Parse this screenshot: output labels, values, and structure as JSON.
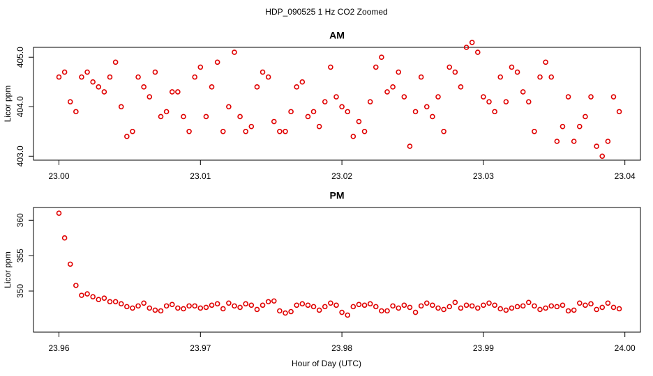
{
  "title": "HDP_090525  1 Hz CO2 Zoomed",
  "xlabel": "Hour of Day (UTC)",
  "chart_data": [
    {
      "type": "scatter",
      "title": "AM",
      "ylabel": "Licor ppm",
      "color": "#e00000",
      "xlim": [
        22.9982,
        23.0411
      ],
      "ylim": [
        402.92,
        405.2
      ],
      "xticks": [
        {
          "value": 23.0,
          "label": "23.00"
        },
        {
          "value": 23.01,
          "label": "23.01"
        },
        {
          "value": 23.02,
          "label": "23.02"
        },
        {
          "value": 23.03,
          "label": "23.03"
        },
        {
          "value": 23.04,
          "label": "23.04"
        }
      ],
      "yticks": [
        {
          "value": 403,
          "label": "403.0"
        },
        {
          "value": 404,
          "label": "404.0"
        },
        {
          "value": 405,
          "label": "405.0"
        }
      ],
      "x": [
        23.0,
        23.0004,
        23.0008,
        23.0012,
        23.0016,
        23.002,
        23.0024,
        23.0028,
        23.0032,
        23.0036,
        23.004,
        23.0044,
        23.0048,
        23.0052,
        23.0056,
        23.006,
        23.0064,
        23.0068,
        23.0072,
        23.0076,
        23.008,
        23.0084,
        23.0088,
        23.0092,
        23.0096,
        23.01,
        23.0104,
        23.0108,
        23.0112,
        23.0116,
        23.012,
        23.0124,
        23.0128,
        23.0132,
        23.0136,
        23.014,
        23.0144,
        23.0148,
        23.0152,
        23.0156,
        23.016,
        23.0164,
        23.0168,
        23.0172,
        23.0176,
        23.018,
        23.0184,
        23.0188,
        23.0192,
        23.0196,
        23.02,
        23.0204,
        23.0208,
        23.0212,
        23.0216,
        23.022,
        23.0224,
        23.0228,
        23.0232,
        23.0236,
        23.024,
        23.0244,
        23.0248,
        23.0252,
        23.0256,
        23.026,
        23.0264,
        23.0268,
        23.0272,
        23.0276,
        23.028,
        23.0284,
        23.0288,
        23.0292,
        23.0296,
        23.03,
        23.0304,
        23.0308,
        23.0312,
        23.0316,
        23.032,
        23.0324,
        23.0328,
        23.0332,
        23.0336,
        23.034,
        23.0344,
        23.0348,
        23.0352,
        23.0356,
        23.036,
        23.0364,
        23.0368,
        23.0372,
        23.0376,
        23.038,
        23.0384,
        23.0388,
        23.0392,
        23.0396
      ],
      "values": [
        404.6,
        404.7,
        404.1,
        403.9,
        404.6,
        404.7,
        404.5,
        404.4,
        404.3,
        404.6,
        404.9,
        404.0,
        403.4,
        403.5,
        404.6,
        404.4,
        404.2,
        404.7,
        403.8,
        403.9,
        404.3,
        404.3,
        403.8,
        403.5,
        404.6,
        404.8,
        403.8,
        404.4,
        404.9,
        403.5,
        404.0,
        405.1,
        403.8,
        403.5,
        403.6,
        404.4,
        404.7,
        404.6,
        403.7,
        403.5,
        403.5,
        403.9,
        404.4,
        404.5,
        403.8,
        403.9,
        403.6,
        404.1,
        404.8,
        404.2,
        404.0,
        403.9,
        403.4,
        403.7,
        403.5,
        404.1,
        404.8,
        405.0,
        404.3,
        404.4,
        404.7,
        404.2,
        403.2,
        403.9,
        404.6,
        404.0,
        403.8,
        404.2,
        403.5,
        404.8,
        404.7,
        404.4,
        405.2,
        405.3,
        405.1,
        404.2,
        404.1,
        403.9,
        404.6,
        404.1,
        404.8,
        404.7,
        404.3,
        404.1,
        403.5,
        404.6,
        404.9,
        404.6,
        403.3,
        403.6,
        404.2,
        403.3,
        403.6,
        403.8,
        404.2,
        403.2,
        403.0,
        403.3,
        404.2,
        403.9
      ]
    },
    {
      "type": "scatter",
      "title": "PM",
      "ylabel": "Licor ppm",
      "color": "#e00000",
      "xlim": [
        23.9582,
        24.0011
      ],
      "ylim": [
        344.2,
        361.8
      ],
      "xticks": [
        {
          "value": 23.96,
          "label": "23.96"
        },
        {
          "value": 23.97,
          "label": "23.97"
        },
        {
          "value": 23.98,
          "label": "23.98"
        },
        {
          "value": 23.99,
          "label": "23.99"
        },
        {
          "value": 24.0,
          "label": "24.00"
        }
      ],
      "yticks": [
        350,
        355,
        360
      ],
      "x": [
        23.96,
        23.9604,
        23.9608,
        23.9612,
        23.9616,
        23.962,
        23.9624,
        23.9628,
        23.9632,
        23.9636,
        23.964,
        23.9644,
        23.9648,
        23.9652,
        23.9656,
        23.966,
        23.9664,
        23.9668,
        23.9672,
        23.9676,
        23.968,
        23.9684,
        23.9688,
        23.9692,
        23.9696,
        23.97,
        23.9704,
        23.9708,
        23.9712,
        23.9716,
        23.972,
        23.9724,
        23.9728,
        23.9732,
        23.9736,
        23.974,
        23.9744,
        23.9748,
        23.9752,
        23.9756,
        23.976,
        23.9764,
        23.9768,
        23.9772,
        23.9776,
        23.978,
        23.9784,
        23.9788,
        23.9792,
        23.9796,
        23.98,
        23.9804,
        23.9808,
        23.9812,
        23.9816,
        23.982,
        23.9824,
        23.9828,
        23.9832,
        23.9836,
        23.984,
        23.9844,
        23.9848,
        23.9852,
        23.9856,
        23.986,
        23.9864,
        23.9868,
        23.9872,
        23.9876,
        23.988,
        23.9884,
        23.9888,
        23.9892,
        23.9896,
        23.99,
        23.9904,
        23.9908,
        23.9912,
        23.9916,
        23.992,
        23.9924,
        23.9928,
        23.9932,
        23.9936,
        23.994,
        23.9944,
        23.9948,
        23.9952,
        23.9956,
        23.996,
        23.9964,
        23.9968,
        23.9972,
        23.9976,
        23.998,
        23.9984,
        23.9988,
        23.9992,
        23.9996
      ],
      "values": [
        361.0,
        357.5,
        353.8,
        350.8,
        349.4,
        349.6,
        349.2,
        348.8,
        349.0,
        348.5,
        348.5,
        348.2,
        347.8,
        347.6,
        347.9,
        348.3,
        347.6,
        347.3,
        347.2,
        347.9,
        348.1,
        347.6,
        347.5,
        347.9,
        347.9,
        347.6,
        347.7,
        348.0,
        348.2,
        347.5,
        348.3,
        347.9,
        347.7,
        348.2,
        348.0,
        347.4,
        348.0,
        348.5,
        348.6,
        347.2,
        346.9,
        347.1,
        348.0,
        348.2,
        348.0,
        347.8,
        347.3,
        347.8,
        348.3,
        348.0,
        347.0,
        346.6,
        347.8,
        348.1,
        348.0,
        348.2,
        347.8,
        347.2,
        347.2,
        347.9,
        347.6,
        348.0,
        347.7,
        347.0,
        347.9,
        348.3,
        348.0,
        347.6,
        347.4,
        347.8,
        348.4,
        347.6,
        348.0,
        347.9,
        347.6,
        348.0,
        348.3,
        348.0,
        347.5,
        347.3,
        347.6,
        347.8,
        347.9,
        348.4,
        347.9,
        347.4,
        347.6,
        347.9,
        347.8,
        348.0,
        347.2,
        347.3,
        348.3,
        348.0,
        348.2,
        347.4,
        347.7,
        348.3,
        347.7,
        347.5
      ]
    }
  ]
}
